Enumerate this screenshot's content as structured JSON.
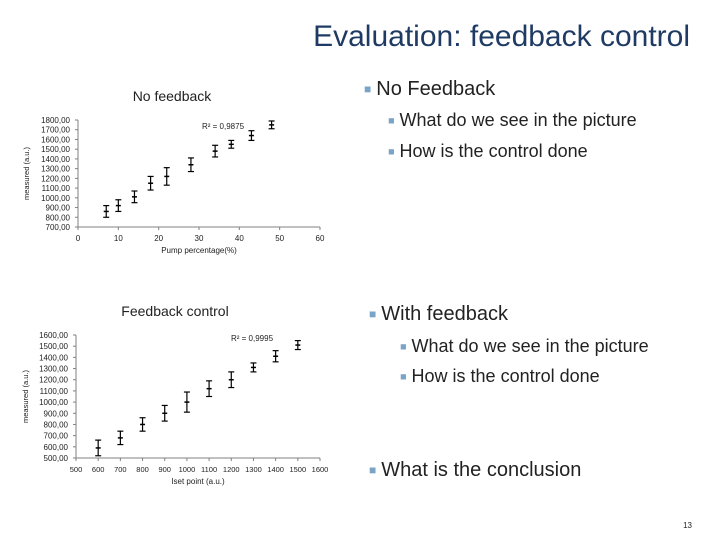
{
  "slide": {
    "title": "Evaluation: feedback control",
    "page_number": "13"
  },
  "bullets": {
    "no_feedback": "No Feedback",
    "no_feedback_q1": "What do we see in the picture",
    "no_feedback_q2": "How is the control done",
    "with_feedback": "With feedback",
    "with_feedback_q1": "What do we see in the picture",
    "with_feedback_q2": "How is the control done",
    "conclusion": "What is the conclusion"
  },
  "colors": {
    "title": "#1f3b63",
    "bullet_marker": "#7aa3c8",
    "data": "#000000"
  },
  "chart_data": [
    {
      "type": "scatter",
      "title": "No feedback",
      "xlabel": "Pump percentage(%)",
      "ylabel": "measured (a.u.)",
      "xlim": [
        0,
        60
      ],
      "ylim": [
        700,
        1800
      ],
      "x_ticks": [
        "0",
        "10",
        "20",
        "30",
        "40",
        "50",
        "60"
      ],
      "y_ticks": [
        "1800,00",
        "1700,00",
        "1600,00",
        "1500,00",
        "1400,00",
        "1300,00",
        "1200,00",
        "1100,00",
        "1000,00",
        "900,00",
        "800,00",
        "700,00"
      ],
      "annotation": "R² = 0,9875",
      "error_bars": true,
      "points": [
        {
          "x": 7,
          "y": 860,
          "err": 60
        },
        {
          "x": 10,
          "y": 920,
          "err": 60
        },
        {
          "x": 14,
          "y": 1010,
          "err": 60
        },
        {
          "x": 18,
          "y": 1150,
          "err": 70
        },
        {
          "x": 22,
          "y": 1220,
          "err": 90
        },
        {
          "x": 28,
          "y": 1340,
          "err": 70
        },
        {
          "x": 34,
          "y": 1480,
          "err": 60
        },
        {
          "x": 38,
          "y": 1550,
          "err": 40
        },
        {
          "x": 43,
          "y": 1640,
          "err": 50
        },
        {
          "x": 48,
          "y": 1750,
          "err": 40
        }
      ]
    },
    {
      "type": "scatter",
      "title": "Feedback control",
      "xlabel": "Iset point (a.u.)",
      "ylabel": "measured (a.u.)",
      "xlim": [
        500,
        1600
      ],
      "ylim": [
        500,
        1600
      ],
      "x_ticks": [
        "500",
        "600",
        "700",
        "800",
        "900",
        "1000",
        "1100",
        "1200",
        "1300",
        "1400",
        "1500",
        "1600"
      ],
      "y_ticks": [
        "1600,00",
        "1500,00",
        "1400,00",
        "1300,00",
        "1200,00",
        "1100,00",
        "1000,00",
        "900,00",
        "800,00",
        "700,00",
        "600,00",
        "500,00"
      ],
      "annotation": "R² = 0,9995",
      "error_bars": true,
      "points": [
        {
          "x": 600,
          "y": 590,
          "err": 70
        },
        {
          "x": 700,
          "y": 680,
          "err": 60
        },
        {
          "x": 800,
          "y": 800,
          "err": 60
        },
        {
          "x": 900,
          "y": 900,
          "err": 70
        },
        {
          "x": 1000,
          "y": 1000,
          "err": 90
        },
        {
          "x": 1100,
          "y": 1120,
          "err": 70
        },
        {
          "x": 1200,
          "y": 1200,
          "err": 70
        },
        {
          "x": 1300,
          "y": 1310,
          "err": 40
        },
        {
          "x": 1400,
          "y": 1410,
          "err": 50
        },
        {
          "x": 1500,
          "y": 1510,
          "err": 40
        }
      ]
    }
  ]
}
